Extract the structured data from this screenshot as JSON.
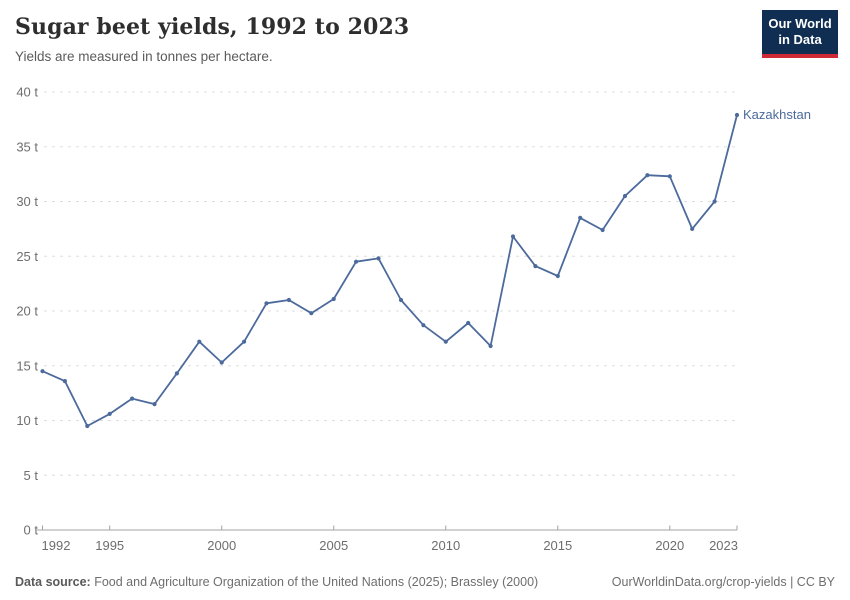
{
  "header": {
    "title": "Sugar beet yields, 1992 to 2023",
    "subtitle": "Yields are measured in tonnes per hectare."
  },
  "logo": {
    "line1": "Our World",
    "line2": "in Data",
    "bg_color": "#0f2e52",
    "accent_color": "#ce2a36"
  },
  "chart_data": {
    "type": "line",
    "title": "Sugar beet yields, 1992 to 2023",
    "ylabel": "tonnes per hectare",
    "y_unit": "t",
    "x": [
      1992,
      1993,
      1994,
      1995,
      1996,
      1997,
      1998,
      1999,
      2000,
      2001,
      2002,
      2003,
      2004,
      2005,
      2006,
      2007,
      2008,
      2009,
      2010,
      2011,
      2012,
      2013,
      2014,
      2015,
      2016,
      2017,
      2018,
      2019,
      2020,
      2021,
      2022,
      2023
    ],
    "series": [
      {
        "name": "Kazakhstan",
        "color": "#4C6A9C",
        "values": [
          14.5,
          13.6,
          9.5,
          10.6,
          12.0,
          11.5,
          14.3,
          17.2,
          15.3,
          17.2,
          20.7,
          21.0,
          19.8,
          21.1,
          24.5,
          24.8,
          21.0,
          18.7,
          17.2,
          18.9,
          16.8,
          26.8,
          24.1,
          23.2,
          28.5,
          27.4,
          30.5,
          32.4,
          32.3,
          27.5,
          30.0,
          37.9
        ]
      }
    ],
    "ylim": [
      0,
      40
    ],
    "yticks": [
      0,
      5,
      10,
      15,
      20,
      25,
      30,
      35,
      40
    ],
    "xticks": [
      1992,
      1995,
      2000,
      2005,
      2010,
      2015,
      2020,
      2023
    ],
    "grid": "horizontal-dashed",
    "grid_color": "#dddddd",
    "axis_color": "#a3a3a3",
    "tick_label_color": "#6e6e6e",
    "legend_position": "line-end-label"
  },
  "footer": {
    "source_label": "Data source:",
    "source_text": " Food and Agriculture Organization of the United Nations (2025); Brassley (2000)",
    "link_text": "OurWorldinData.org/crop-yields | CC BY"
  }
}
